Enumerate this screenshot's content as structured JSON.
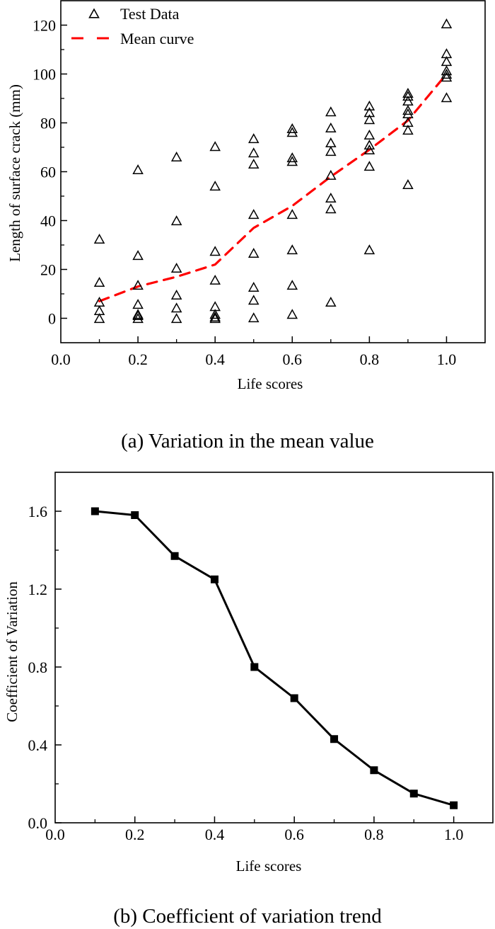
{
  "figure": {
    "caption_a": "(a) Variation in the mean value",
    "caption_b": "(b) Coefficient of variation trend"
  },
  "chart_data": [
    {
      "type": "scatter",
      "title": "(a) Variation in the mean value",
      "xlabel": "Life scores",
      "ylabel": "Length of surface crack (mm)",
      "xlim": [
        0.0,
        1.1
      ],
      "ylim": [
        -10,
        130
      ],
      "x_ticks": [
        "0.0",
        "0.2",
        "0.4",
        "0.6",
        "0.8",
        "1.0"
      ],
      "x_tick_values": [
        0.0,
        0.2,
        0.4,
        0.6,
        0.8,
        1.0
      ],
      "x_minor_ticks": [
        0.1,
        0.3,
        0.5,
        0.7,
        0.9
      ],
      "y_ticks": [
        "0",
        "20",
        "40",
        "60",
        "80",
        "100",
        "120"
      ],
      "y_tick_values": [
        0,
        20,
        40,
        60,
        80,
        100,
        120
      ],
      "y_minor_ticks": [
        10,
        30,
        50,
        70,
        90,
        110
      ],
      "grid": false,
      "legend": {
        "placement": "top-left",
        "entries": [
          "Test Data",
          "Mean curve"
        ]
      },
      "colors": {
        "test_data": "#000000",
        "mean_curve": "#ff0000"
      },
      "series": [
        {
          "name": "Test Data",
          "kind": "scatter",
          "marker": "open-triangle",
          "points": [
            [
              0.1,
              32.5
            ],
            [
              0.1,
              14.8
            ],
            [
              0.1,
              6.7
            ],
            [
              0.1,
              3.2
            ],
            [
              0.1,
              0
            ],
            [
              0.2,
              60.9
            ],
            [
              0.2,
              25.8
            ],
            [
              0.2,
              13.6
            ],
            [
              0.2,
              5.8
            ],
            [
              0.2,
              1.7
            ],
            [
              0.2,
              1.2
            ],
            [
              0.2,
              0
            ],
            [
              0.3,
              66.1
            ],
            [
              0.3,
              40.0
            ],
            [
              0.3,
              20.6
            ],
            [
              0.3,
              9.6
            ],
            [
              0.3,
              4.3
            ],
            [
              0.3,
              0
            ],
            [
              0.4,
              70.4
            ],
            [
              0.4,
              54.2
            ],
            [
              0.4,
              27.5
            ],
            [
              0.4,
              15.7
            ],
            [
              0.4,
              4.9
            ],
            [
              0.4,
              1.7
            ],
            [
              0.4,
              0.6
            ],
            [
              0.4,
              0
            ],
            [
              0.5,
              73.6
            ],
            [
              0.5,
              67.8
            ],
            [
              0.5,
              63.2
            ],
            [
              0.5,
              42.6
            ],
            [
              0.5,
              26.7
            ],
            [
              0.5,
              12.8
            ],
            [
              0.5,
              7.5
            ],
            [
              0.5,
              0.3
            ],
            [
              0.6,
              77.7
            ],
            [
              0.6,
              76.2
            ],
            [
              0.6,
              65.8
            ],
            [
              0.6,
              64.3
            ],
            [
              0.6,
              42.6
            ],
            [
              0.6,
              28.1
            ],
            [
              0.6,
              13.6
            ],
            [
              0.6,
              1.7
            ],
            [
              0.7,
              84.6
            ],
            [
              0.7,
              78.0
            ],
            [
              0.7,
              71.9
            ],
            [
              0.7,
              68.4
            ],
            [
              0.7,
              58.6
            ],
            [
              0.7,
              49.3
            ],
            [
              0.7,
              44.9
            ],
            [
              0.7,
              6.7
            ],
            [
              0.8,
              87.0
            ],
            [
              0.8,
              84.3
            ],
            [
              0.8,
              81.4
            ],
            [
              0.8,
              75.1
            ],
            [
              0.8,
              71.0
            ],
            [
              0.8,
              69.0
            ],
            [
              0.8,
              62.3
            ],
            [
              0.8,
              28.1
            ],
            [
              0.9,
              92.2
            ],
            [
              0.9,
              91.0
            ],
            [
              0.9,
              89.0
            ],
            [
              0.9,
              85.2
            ],
            [
              0.9,
              83.8
            ],
            [
              0.9,
              80.3
            ],
            [
              0.9,
              77.1
            ],
            [
              0.9,
              54.8
            ],
            [
              1.0,
              120.6
            ],
            [
              1.0,
              108.4
            ],
            [
              1.0,
              105.2
            ],
            [
              1.0,
              101.4
            ],
            [
              1.0,
              100.0
            ],
            [
              1.0,
              98.8
            ],
            [
              1.0,
              90.4
            ]
          ]
        },
        {
          "name": "Mean curve",
          "kind": "line",
          "style": "dashed",
          "x": [
            0.1,
            0.2,
            0.3,
            0.4,
            0.5,
            0.6,
            0.7,
            0.8,
            0.9,
            1.0
          ],
          "y": [
            7,
            13,
            17,
            22,
            37,
            46,
            58,
            69,
            81,
            100
          ]
        }
      ]
    },
    {
      "type": "line",
      "title": "(b) Coefficient of variation trend",
      "xlabel": "Life scores",
      "ylabel": "Coefficient of Variation",
      "xlim": [
        0.0,
        1.1
      ],
      "ylim": [
        0.0,
        1.8
      ],
      "x_ticks": [
        "0.0",
        "0.2",
        "0.4",
        "0.6",
        "0.8",
        "1.0"
      ],
      "x_tick_values": [
        0.0,
        0.2,
        0.4,
        0.6,
        0.8,
        1.0
      ],
      "x_minor_ticks": [
        0.1,
        0.3,
        0.5,
        0.7,
        0.9
      ],
      "y_ticks": [
        "0.0",
        "0.4",
        "0.8",
        "1.2",
        "1.6"
      ],
      "y_tick_values": [
        0.0,
        0.4,
        0.8,
        1.2,
        1.6
      ],
      "y_minor_ticks": [
        0.2,
        0.6,
        1.0,
        1.4
      ],
      "grid": false,
      "colors": {
        "line": "#000000"
      },
      "series": [
        {
          "name": "Coefficient of Variation",
          "marker": "filled-square",
          "x": [
            0.1,
            0.2,
            0.3,
            0.4,
            0.5,
            0.6,
            0.7,
            0.8,
            0.9,
            1.0
          ],
          "y": [
            1.6,
            1.58,
            1.37,
            1.25,
            0.8,
            0.64,
            0.43,
            0.27,
            0.15,
            0.09
          ]
        }
      ]
    }
  ]
}
